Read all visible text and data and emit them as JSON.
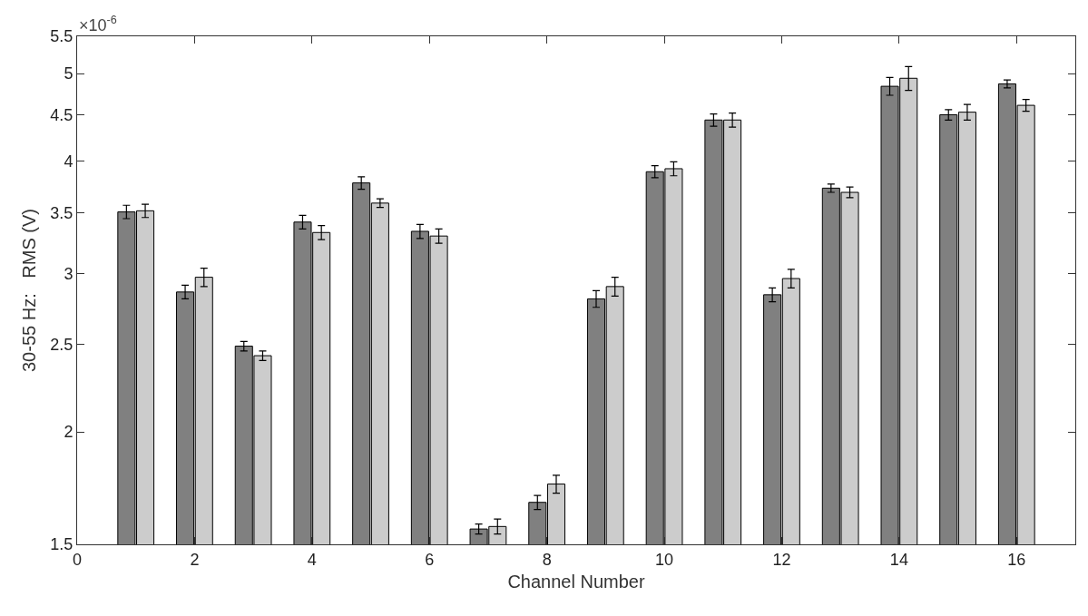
{
  "chart_data": {
    "type": "bar",
    "xlabel": "Channel Number",
    "ylabel": "30-55 Hz:   RMS (V)",
    "annotations": [
      "×10$^{-6}$"
    ],
    "x": [
      1,
      2,
      3,
      4,
      5,
      6,
      7,
      8,
      9,
      10,
      11,
      12,
      13,
      14,
      15,
      16
    ],
    "series": [
      {
        "color": "#808080",
        "values": [
          3.51,
          2.86,
          2.49,
          3.42,
          3.78,
          3.34,
          1.56,
          1.67,
          2.81,
          3.89,
          4.44,
          2.84,
          3.73,
          4.84,
          4.5,
          4.87
        ],
        "errors": [
          0.06,
          0.05,
          0.03,
          0.06,
          0.06,
          0.06,
          0.02,
          0.03,
          0.06,
          0.06,
          0.07,
          0.05,
          0.04,
          0.11,
          0.06,
          0.05
        ]
      },
      {
        "color": "#cccccc",
        "values": [
          3.52,
          2.97,
          2.43,
          3.33,
          3.59,
          3.3,
          1.57,
          1.75,
          2.9,
          3.92,
          4.44,
          2.96,
          3.69,
          4.94,
          4.53,
          4.61
        ],
        "errors": [
          0.06,
          0.07,
          0.03,
          0.06,
          0.04,
          0.06,
          0.03,
          0.04,
          0.07,
          0.07,
          0.08,
          0.07,
          0.05,
          0.15,
          0.09,
          0.07
        ]
      }
    ],
    "log": "y",
    "xlim": [
      0,
      17
    ],
    "xticks": [
      0,
      2,
      4,
      6,
      8,
      10,
      12,
      14,
      16
    ],
    "ylim": [
      1.5,
      5.5
    ],
    "yticks": [
      1.5,
      2,
      2.5,
      3,
      3.5,
      4,
      4.5,
      5,
      5.5
    ],
    "grid": false
  }
}
